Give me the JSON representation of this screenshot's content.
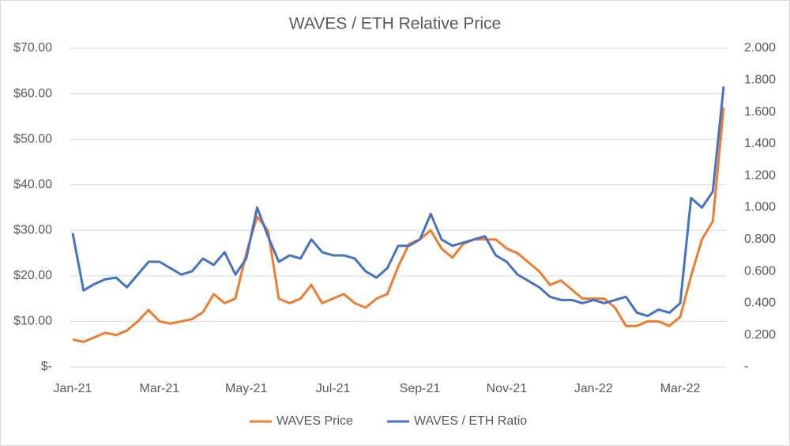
{
  "chart_data": {
    "type": "line",
    "title": "WAVES  / ETH Relative Price",
    "categories": [
      "Jan-21",
      null,
      null,
      null,
      null,
      null,
      null,
      null,
      "Mar-21",
      null,
      null,
      null,
      null,
      null,
      null,
      null,
      "May-21",
      null,
      null,
      null,
      null,
      null,
      null,
      null,
      "Jul-21",
      null,
      null,
      null,
      null,
      null,
      null,
      null,
      "Sep-21",
      null,
      null,
      null,
      null,
      null,
      null,
      null,
      "Nov-21",
      null,
      null,
      null,
      null,
      null,
      null,
      null,
      "Jan-22",
      null,
      null,
      null,
      null,
      null,
      null,
      null,
      "Mar-22",
      null,
      null,
      null,
      null
    ],
    "series": [
      {
        "name": "WAVES Price",
        "color": "#ed7d31",
        "axis": "y",
        "values": [
          6,
          5.5,
          6.5,
          7.5,
          7,
          8,
          10,
          12.5,
          10,
          9.5,
          10,
          10.5,
          12,
          16,
          14,
          15,
          25,
          33,
          30,
          15,
          14,
          15,
          18,
          14,
          15,
          16,
          14,
          13,
          15,
          16,
          22,
          27,
          28,
          30,
          26,
          24,
          27,
          28,
          28,
          28,
          26,
          25,
          23,
          21,
          18,
          19,
          17,
          15,
          15,
          15,
          13,
          9,
          9,
          10,
          10,
          9,
          11,
          20,
          28,
          32,
          57
        ]
      },
      {
        "name": "WAVES / ETH Ratio",
        "color": "#4472c4",
        "axis": "y2",
        "values": [
          0.84,
          0.48,
          0.52,
          0.55,
          0.56,
          0.5,
          0.58,
          0.66,
          0.66,
          0.62,
          0.58,
          0.6,
          0.68,
          0.64,
          0.72,
          0.58,
          0.68,
          1.0,
          0.82,
          0.66,
          0.7,
          0.68,
          0.8,
          0.72,
          0.7,
          0.7,
          0.68,
          0.6,
          0.56,
          0.62,
          0.76,
          0.76,
          0.8,
          0.96,
          0.8,
          0.76,
          0.78,
          0.8,
          0.82,
          0.7,
          0.66,
          0.58,
          0.54,
          0.5,
          0.44,
          0.42,
          0.42,
          0.4,
          0.42,
          0.4,
          0.42,
          0.44,
          0.34,
          0.32,
          0.36,
          0.34,
          0.4,
          1.06,
          1.0,
          1.1,
          1.76
        ]
      }
    ],
    "ylim": [
      0,
      70
    ],
    "yticks": [
      {
        "value": 0,
        "label": "$-"
      },
      {
        "value": 10,
        "label": "$10.00"
      },
      {
        "value": 20,
        "label": "$20.00"
      },
      {
        "value": 30,
        "label": "$30.00"
      },
      {
        "value": 40,
        "label": "$40.00"
      },
      {
        "value": 50,
        "label": "$50.00"
      },
      {
        "value": 60,
        "label": "$60.00"
      },
      {
        "value": 70,
        "label": "$70.00"
      }
    ],
    "y2lim": [
      0,
      2
    ],
    "y2ticks": [
      {
        "value": 0,
        "label": "-"
      },
      {
        "value": 0.2,
        "label": "0.200"
      },
      {
        "value": 0.4,
        "label": "0.400"
      },
      {
        "value": 0.6,
        "label": "0.600"
      },
      {
        "value": 0.8,
        "label": "0.800"
      },
      {
        "value": 1,
        "label": "1.000"
      },
      {
        "value": 1.2,
        "label": "1.200"
      },
      {
        "value": 1.4,
        "label": "1.400"
      },
      {
        "value": 1.6,
        "label": "1.600"
      },
      {
        "value": 1.8,
        "label": "1.800"
      },
      {
        "value": 2,
        "label": "2.000"
      }
    ],
    "grid": true,
    "legend": "bottom"
  }
}
